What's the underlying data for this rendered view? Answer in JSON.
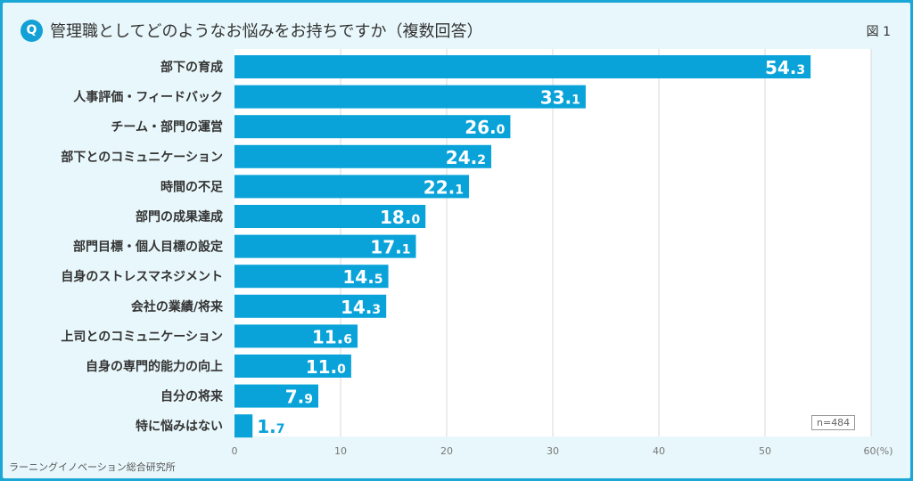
{
  "header": {
    "badge": "Q",
    "title": "管理職としてどのようなお悩みをお持ちですか（複数回答）",
    "figure_label": "図 1"
  },
  "sample": "n=484",
  "source": "ラーニングイノベーション総合研究所",
  "colors": {
    "bar": "#0aa3d9",
    "frame": "#1aa7d6",
    "background": "#e8f7fb"
  },
  "chart_data": {
    "type": "bar",
    "orientation": "horizontal",
    "categories": [
      "部下の育成",
      "人事評価・フィードバック",
      "チーム・部門の運営",
      "部下とのコミュニケーション",
      "時間の不足",
      "部門の成果達成",
      "部門目標・個人目標の設定",
      "自身のストレスマネジメント",
      "会社の業績/将来",
      "上司とのコミュニケーション",
      "自身の専門的能力の向上",
      "自分の将来",
      "特に悩みはない"
    ],
    "values": [
      54.3,
      33.1,
      26.0,
      24.2,
      22.1,
      18.0,
      17.1,
      14.5,
      14.3,
      11.6,
      11.0,
      7.9,
      1.7
    ],
    "xlim": [
      0,
      60
    ],
    "xticks": [
      "0",
      "10",
      "20",
      "30",
      "40",
      "50",
      "60"
    ],
    "xunit": "(%)",
    "grid": true
  }
}
